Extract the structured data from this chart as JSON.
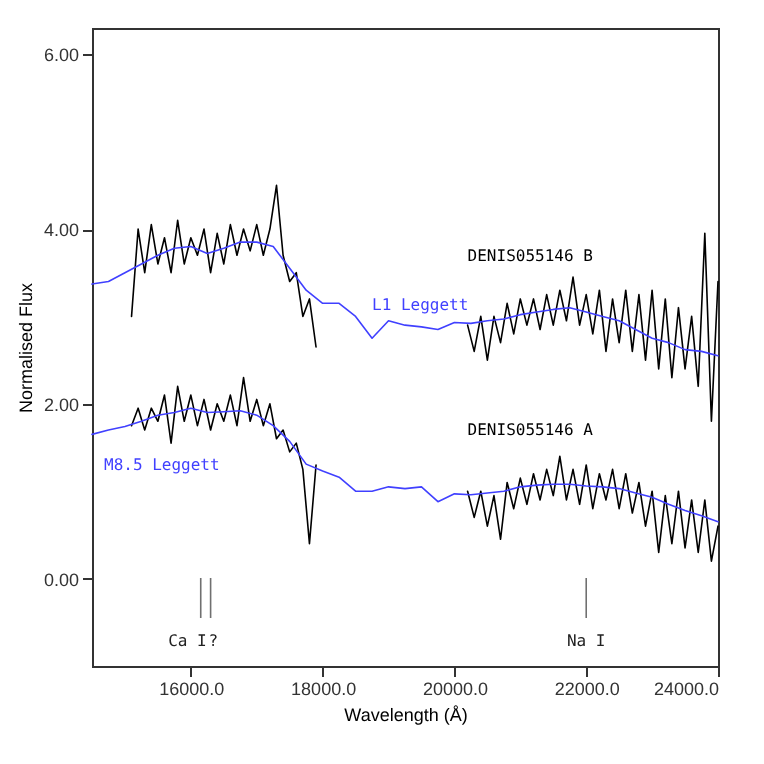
{
  "chart_data": {
    "type": "line",
    "xlabel": "Wavelength (Å)",
    "ylabel": "Normalised Flux",
    "xlim": [
      14500,
      24000
    ],
    "ylim": [
      -1,
      6.3
    ],
    "xticks": [
      {
        "value": 16000,
        "label": "16000.0"
      },
      {
        "value": 18000,
        "label": "18000.0"
      },
      {
        "value": 20000,
        "label": "20000.0"
      },
      {
        "value": 22000,
        "label": "22000.0"
      },
      {
        "value": 24000,
        "label": "24000.0"
      }
    ],
    "yticks": [
      {
        "value": 0,
        "label": "0.00"
      },
      {
        "value": 2,
        "label": "2.00"
      },
      {
        "value": 4,
        "label": "4.00"
      },
      {
        "value": 6,
        "label": "6.00"
      }
    ],
    "grid": false,
    "marker": "none",
    "line_style": "solid",
    "series": [
      {
        "name": "DENIS055146 B",
        "color": "#000000",
        "x": [
          15100,
          15200,
          15300,
          15400,
          15500,
          15600,
          15700,
          15800,
          15900,
          16000,
          16100,
          16200,
          16300,
          16400,
          16500,
          16600,
          16700,
          16800,
          16900,
          17000,
          17100,
          17200,
          17300,
          17400,
          17500,
          17600,
          17700,
          17800,
          17900,
          18000,
          20200,
          20300,
          20400,
          20500,
          20600,
          20700,
          20800,
          20900,
          21000,
          21100,
          21200,
          21300,
          21400,
          21500,
          21600,
          21700,
          21800,
          21900,
          22000,
          22100,
          22200,
          22300,
          22400,
          22500,
          22600,
          22700,
          22800,
          22900,
          23000,
          23100,
          23200,
          23300,
          23400,
          23500,
          23600,
          23700,
          23800,
          23900,
          24000
        ],
        "values": [
          3.0,
          4.0,
          3.5,
          4.05,
          3.6,
          3.9,
          3.5,
          4.1,
          3.6,
          3.9,
          3.7,
          4.0,
          3.5,
          3.95,
          3.6,
          4.05,
          3.7,
          4.0,
          3.75,
          4.05,
          3.7,
          4.0,
          4.5,
          3.7,
          3.4,
          3.5,
          3.0,
          3.2,
          2.65,
          null,
          2.9,
          2.6,
          3.0,
          2.5,
          3.0,
          2.7,
          3.15,
          2.8,
          3.2,
          2.9,
          3.2,
          2.85,
          3.25,
          2.9,
          3.3,
          2.95,
          3.45,
          2.9,
          3.25,
          2.8,
          3.3,
          2.6,
          3.2,
          2.7,
          3.3,
          2.6,
          3.25,
          2.5,
          3.3,
          2.4,
          3.2,
          2.3,
          3.1,
          2.4,
          3.0,
          2.2,
          3.95,
          1.8,
          3.4
        ]
      },
      {
        "name": "L1 Leggett",
        "color": "#4040ff",
        "x": [
          14500,
          14750,
          15000,
          15250,
          15500,
          15750,
          16000,
          16250,
          16500,
          16750,
          17000,
          17250,
          17500,
          17750,
          18000,
          18250,
          18500,
          18750,
          19000,
          19250,
          19500,
          19750,
          20000,
          20250,
          20500,
          20750,
          21000,
          21250,
          21500,
          21750,
          22000,
          22250,
          22500,
          22750,
          23000,
          23250,
          23500,
          23750,
          24000
        ],
        "values": [
          3.37,
          3.4,
          3.5,
          3.6,
          3.7,
          3.78,
          3.8,
          3.72,
          3.78,
          3.85,
          3.85,
          3.8,
          3.55,
          3.3,
          3.15,
          3.15,
          3.0,
          2.75,
          2.95,
          2.9,
          2.88,
          2.85,
          2.93,
          2.92,
          2.95,
          2.97,
          3.02,
          3.05,
          3.08,
          3.1,
          3.05,
          3.0,
          2.95,
          2.85,
          2.75,
          2.7,
          2.62,
          2.6,
          2.55
        ]
      },
      {
        "name": "DENIS055146 A",
        "color": "#000000",
        "x": [
          15100,
          15200,
          15300,
          15400,
          15500,
          15600,
          15700,
          15800,
          15900,
          16000,
          16100,
          16200,
          16300,
          16400,
          16500,
          16600,
          16700,
          16800,
          16900,
          17000,
          17100,
          17200,
          17300,
          17400,
          17500,
          17600,
          17700,
          17800,
          17900,
          18000,
          20200,
          20300,
          20400,
          20500,
          20600,
          20700,
          20800,
          20900,
          21000,
          21100,
          21200,
          21300,
          21400,
          21500,
          21600,
          21700,
          21800,
          21900,
          22000,
          22100,
          22200,
          22300,
          22400,
          22500,
          22600,
          22700,
          22800,
          22900,
          23000,
          23100,
          23200,
          23300,
          23400,
          23500,
          23600,
          23700,
          23800,
          23900,
          24000
        ],
        "values": [
          1.75,
          1.95,
          1.7,
          1.95,
          1.8,
          2.1,
          1.55,
          2.2,
          1.8,
          2.1,
          1.75,
          2.05,
          1.7,
          2.0,
          1.8,
          2.1,
          1.75,
          2.3,
          1.8,
          2.05,
          1.75,
          2.0,
          1.6,
          1.7,
          1.45,
          1.55,
          1.25,
          0.4,
          1.3,
          null,
          1.0,
          0.7,
          1.0,
          0.6,
          0.95,
          0.45,
          1.1,
          0.8,
          1.15,
          0.85,
          1.2,
          0.9,
          1.25,
          0.95,
          1.4,
          0.9,
          1.25,
          0.85,
          1.3,
          0.8,
          1.2,
          0.9,
          1.25,
          0.8,
          1.2,
          0.75,
          1.1,
          0.6,
          1.0,
          0.3,
          0.95,
          0.4,
          1.0,
          0.35,
          0.9,
          0.3,
          0.9,
          0.2,
          0.6
        ]
      },
      {
        "name": "M8.5 Leggett",
        "color": "#4040ff",
        "x": [
          14500,
          14750,
          15000,
          15250,
          15500,
          15750,
          16000,
          16250,
          16500,
          16750,
          17000,
          17250,
          17500,
          17750,
          18000,
          18250,
          18500,
          18750,
          19000,
          19250,
          19500,
          19750,
          20000,
          20250,
          20500,
          20750,
          21000,
          21250,
          21500,
          21750,
          22000,
          22250,
          22500,
          22750,
          23000,
          23250,
          23500,
          23750,
          24000
        ],
        "values": [
          1.65,
          1.7,
          1.74,
          1.8,
          1.87,
          1.9,
          1.95,
          1.9,
          1.91,
          1.92,
          1.87,
          1.75,
          1.57,
          1.31,
          1.23,
          1.16,
          1.0,
          1.0,
          1.05,
          1.03,
          1.05,
          0.88,
          0.97,
          0.96,
          0.98,
          1.0,
          1.05,
          1.07,
          1.08,
          1.08,
          1.06,
          1.05,
          1.03,
          0.98,
          0.93,
          0.85,
          0.78,
          0.72,
          0.65
        ]
      }
    ],
    "ref_lines": [
      {
        "axis": "x",
        "value": 16150,
        "label": "Ca I"
      },
      {
        "axis": "x",
        "value": 16300,
        "label": "?"
      },
      {
        "axis": "x",
        "value": 22000,
        "label": "Na I"
      }
    ]
  }
}
